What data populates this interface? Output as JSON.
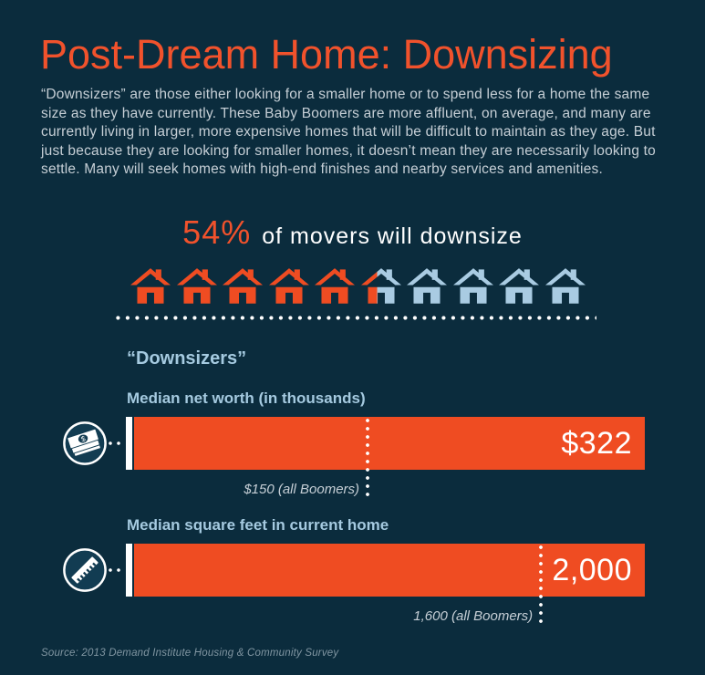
{
  "page": {
    "title": "Post-Dream Home: Downsizing",
    "intro": "“Downsizers” are those either looking for a smaller home or to spend less for a home the same size as they have currently. These Baby Boomers are more affluent, on average, and many are currently living in larger, more expensive homes that will be difficult to maintain as they age. But just because they are looking for smaller homes, it doesn’t mean they are necessarily looking to settle. Many will seek homes with high-end finishes and nearby services and amenities.",
    "source": "Source: 2013 Demand Institute Housing & Community Survey"
  },
  "stat": {
    "value": "54%",
    "text": "of movers will downsize"
  },
  "section": {
    "heading": "“Downsizers”"
  },
  "bars": [
    {
      "label": "Median net worth (in thousands)",
      "value": 322,
      "value_text": "$322",
      "benchmark": 150,
      "benchmark_text": "$150 (all Boomers)",
      "icon": "money-icon"
    },
    {
      "label": "Median square feet in current home",
      "value": 2000,
      "value_text": "2,000",
      "benchmark": 1600,
      "benchmark_text": "1,600 (all Boomers)",
      "icon": "ruler-icon"
    }
  ],
  "colors": {
    "bg": "#0B2C3D",
    "orange": "#EF4C22",
    "orange_title": "#F1522C",
    "lightblue": "#A9CBE2",
    "heading_blue": "#A5CAE0",
    "body_text": "#C6CFD6",
    "white": "#FFFFFF",
    "muted": "#8196A2",
    "circle_fill": "#123C52"
  },
  "chart_data": [
    {
      "type": "pictograph",
      "title": "54% of movers will downsize",
      "percent": 54,
      "icon": "house",
      "icons_total": 10,
      "icons_filled": 5.4,
      "filled_color": "#EF4C22",
      "unfilled_color": "#A9CBE2",
      "layout": "single row of 10 house icons above a white dotted rule"
    },
    {
      "type": "bar",
      "orientation": "horizontal",
      "title": "Median net worth (in thousands)",
      "categories": [
        "Downsizers",
        "All Boomers"
      ],
      "values": [
        322,
        150
      ],
      "value_labels": [
        "$322",
        "$150 (all Boomers)"
      ],
      "xlim": [
        0,
        322
      ],
      "legend_position": "none",
      "note": "All-Boomers value drawn as white dotted benchmark line over the Downsizers bar"
    },
    {
      "type": "bar",
      "orientation": "horizontal",
      "title": "Median square feet in current home",
      "categories": [
        "Downsizers",
        "All Boomers"
      ],
      "values": [
        2000,
        1600
      ],
      "value_labels": [
        "2,000",
        "1,600 (all Boomers)"
      ],
      "xlim": [
        0,
        2000
      ],
      "legend_position": "none",
      "note": "All-Boomers value drawn as white dotted benchmark line over the Downsizers bar"
    }
  ]
}
